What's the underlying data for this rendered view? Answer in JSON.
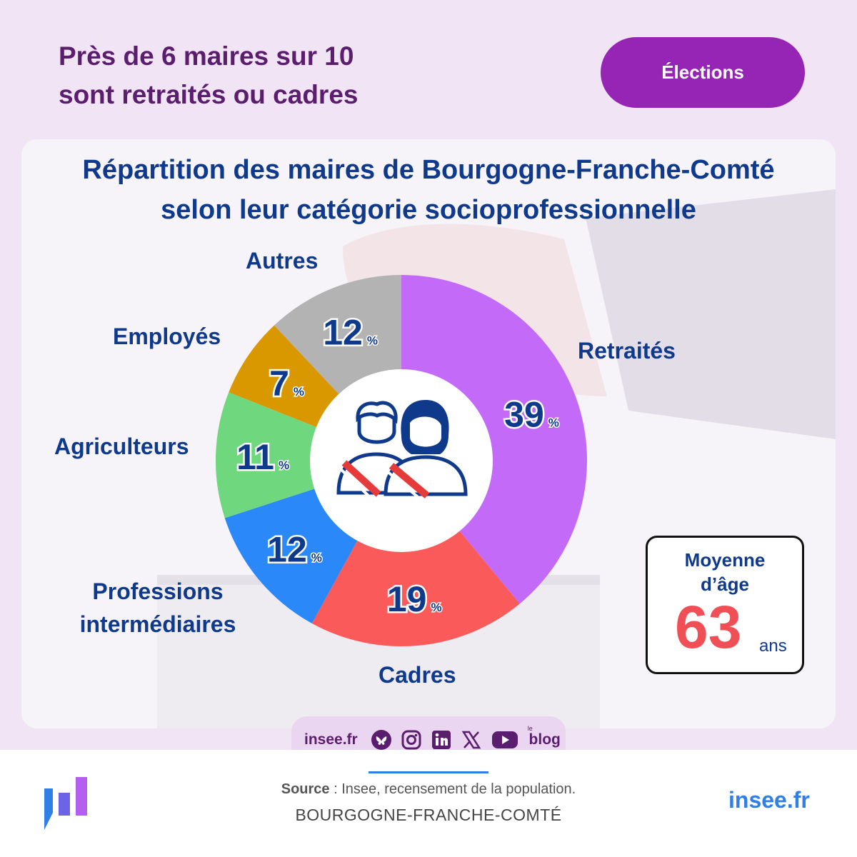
{
  "headline": [
    "Près de 6 maires sur 10",
    "sont retraités ou cadres"
  ],
  "tag": "Élections",
  "chart_data": {
    "type": "pie",
    "title": [
      "Répartition des maires de Bourgogne-Franche-Comté",
      "selon leur catégorie socioprofessionnelle"
    ],
    "unit": "%",
    "slices": [
      {
        "name": "Retraités",
        "value": 39,
        "color": "#c46af8"
      },
      {
        "name": "Cadres",
        "value": 19,
        "color": "#fa5a5a"
      },
      {
        "name": "Professions intermédiaires",
        "value": 12,
        "color": "#2a88f8"
      },
      {
        "name": "Agriculteurs",
        "value": 11,
        "color": "#6fd77d"
      },
      {
        "name": "Employés",
        "value": 7,
        "color": "#d99800"
      },
      {
        "name": "Autres",
        "value": 12,
        "color": "#b3b3b3"
      }
    ]
  },
  "labels": {
    "retraites": "Retraités",
    "cadres": "Cadres",
    "professions": [
      "Professions",
      "intermédiaires"
    ],
    "agriculteurs": "Agriculteurs",
    "employes": "Employés",
    "autres": "Autres"
  },
  "age": {
    "label": [
      "Moyenne",
      "d’âge"
    ],
    "value": "63",
    "unit": "ans"
  },
  "social": {
    "site": "insee.fr",
    "icons": [
      "bluesky-icon",
      "instagram-icon",
      "linkedin-icon",
      "x-icon",
      "youtube-icon",
      "blog-icon"
    ],
    "blog_small": "le",
    "blog": "blog"
  },
  "footer": {
    "source_label": "Source",
    "source_text": " : Insee, recensement de la population.",
    "region": "BOURGOGNE-FRANCHE-COMTÉ",
    "site": "insee.fr"
  }
}
